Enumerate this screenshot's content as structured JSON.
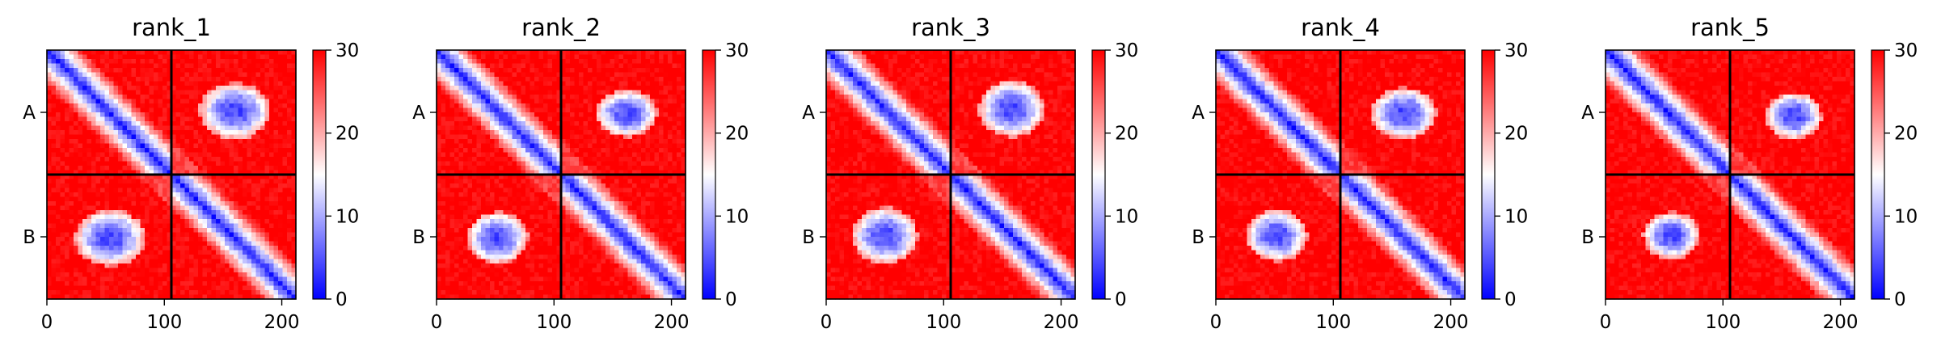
{
  "chart_data": [
    {
      "type": "heatmap",
      "title": "rank_1",
      "chain_labels": [
        "A",
        "B"
      ],
      "xticks": [
        0,
        100,
        200
      ],
      "xlim": [
        0,
        212
      ],
      "colorbar_ticks": [
        0,
        10,
        20,
        30
      ],
      "clim": [
        0,
        30
      ],
      "colormap": "bwr",
      "chain_boundary": 106,
      "blobs": [
        [
          160,
          52,
          30,
          24
        ],
        [
          54,
          160,
          30,
          24
        ]
      ]
    },
    {
      "type": "heatmap",
      "title": "rank_2",
      "chain_labels": [
        "A",
        "B"
      ],
      "xticks": [
        0,
        100,
        200
      ],
      "xlim": [
        0,
        212
      ],
      "colorbar_ticks": [
        0,
        10,
        20,
        30
      ],
      "clim": [
        0,
        30
      ],
      "colormap": "bwr",
      "chain_boundary": 106,
      "blobs": [
        [
          162,
          54,
          26,
          20
        ],
        [
          52,
          160,
          26,
          22
        ]
      ]
    },
    {
      "type": "heatmap",
      "title": "rank_3",
      "chain_labels": [
        "A",
        "B"
      ],
      "xticks": [
        0,
        100,
        200
      ],
      "xlim": [
        0,
        212
      ],
      "colorbar_ticks": [
        0,
        10,
        20,
        30
      ],
      "clim": [
        0,
        30
      ],
      "colormap": "bwr",
      "chain_boundary": 106,
      "blobs": [
        [
          158,
          50,
          28,
          24
        ],
        [
          50,
          158,
          28,
          24
        ]
      ]
    },
    {
      "type": "heatmap",
      "title": "rank_4",
      "chain_labels": [
        "A",
        "B"
      ],
      "xticks": [
        0,
        100,
        200
      ],
      "xlim": [
        0,
        212
      ],
      "colorbar_ticks": [
        0,
        10,
        20,
        30
      ],
      "clim": [
        0,
        30
      ],
      "colormap": "bwr",
      "chain_boundary": 106,
      "blobs": [
        [
          160,
          54,
          28,
          22
        ],
        [
          52,
          158,
          26,
          22
        ]
      ]
    },
    {
      "type": "heatmap",
      "title": "rank_5",
      "chain_labels": [
        "A",
        "B"
      ],
      "xticks": [
        0,
        100,
        200
      ],
      "xlim": [
        0,
        212
      ],
      "colorbar_ticks": [
        0,
        10,
        20,
        30
      ],
      "clim": [
        0,
        30
      ],
      "colormap": "bwr",
      "chain_boundary": 106,
      "blobs": [
        [
          160,
          56,
          24,
          20
        ],
        [
          56,
          158,
          24,
          20
        ]
      ]
    }
  ]
}
